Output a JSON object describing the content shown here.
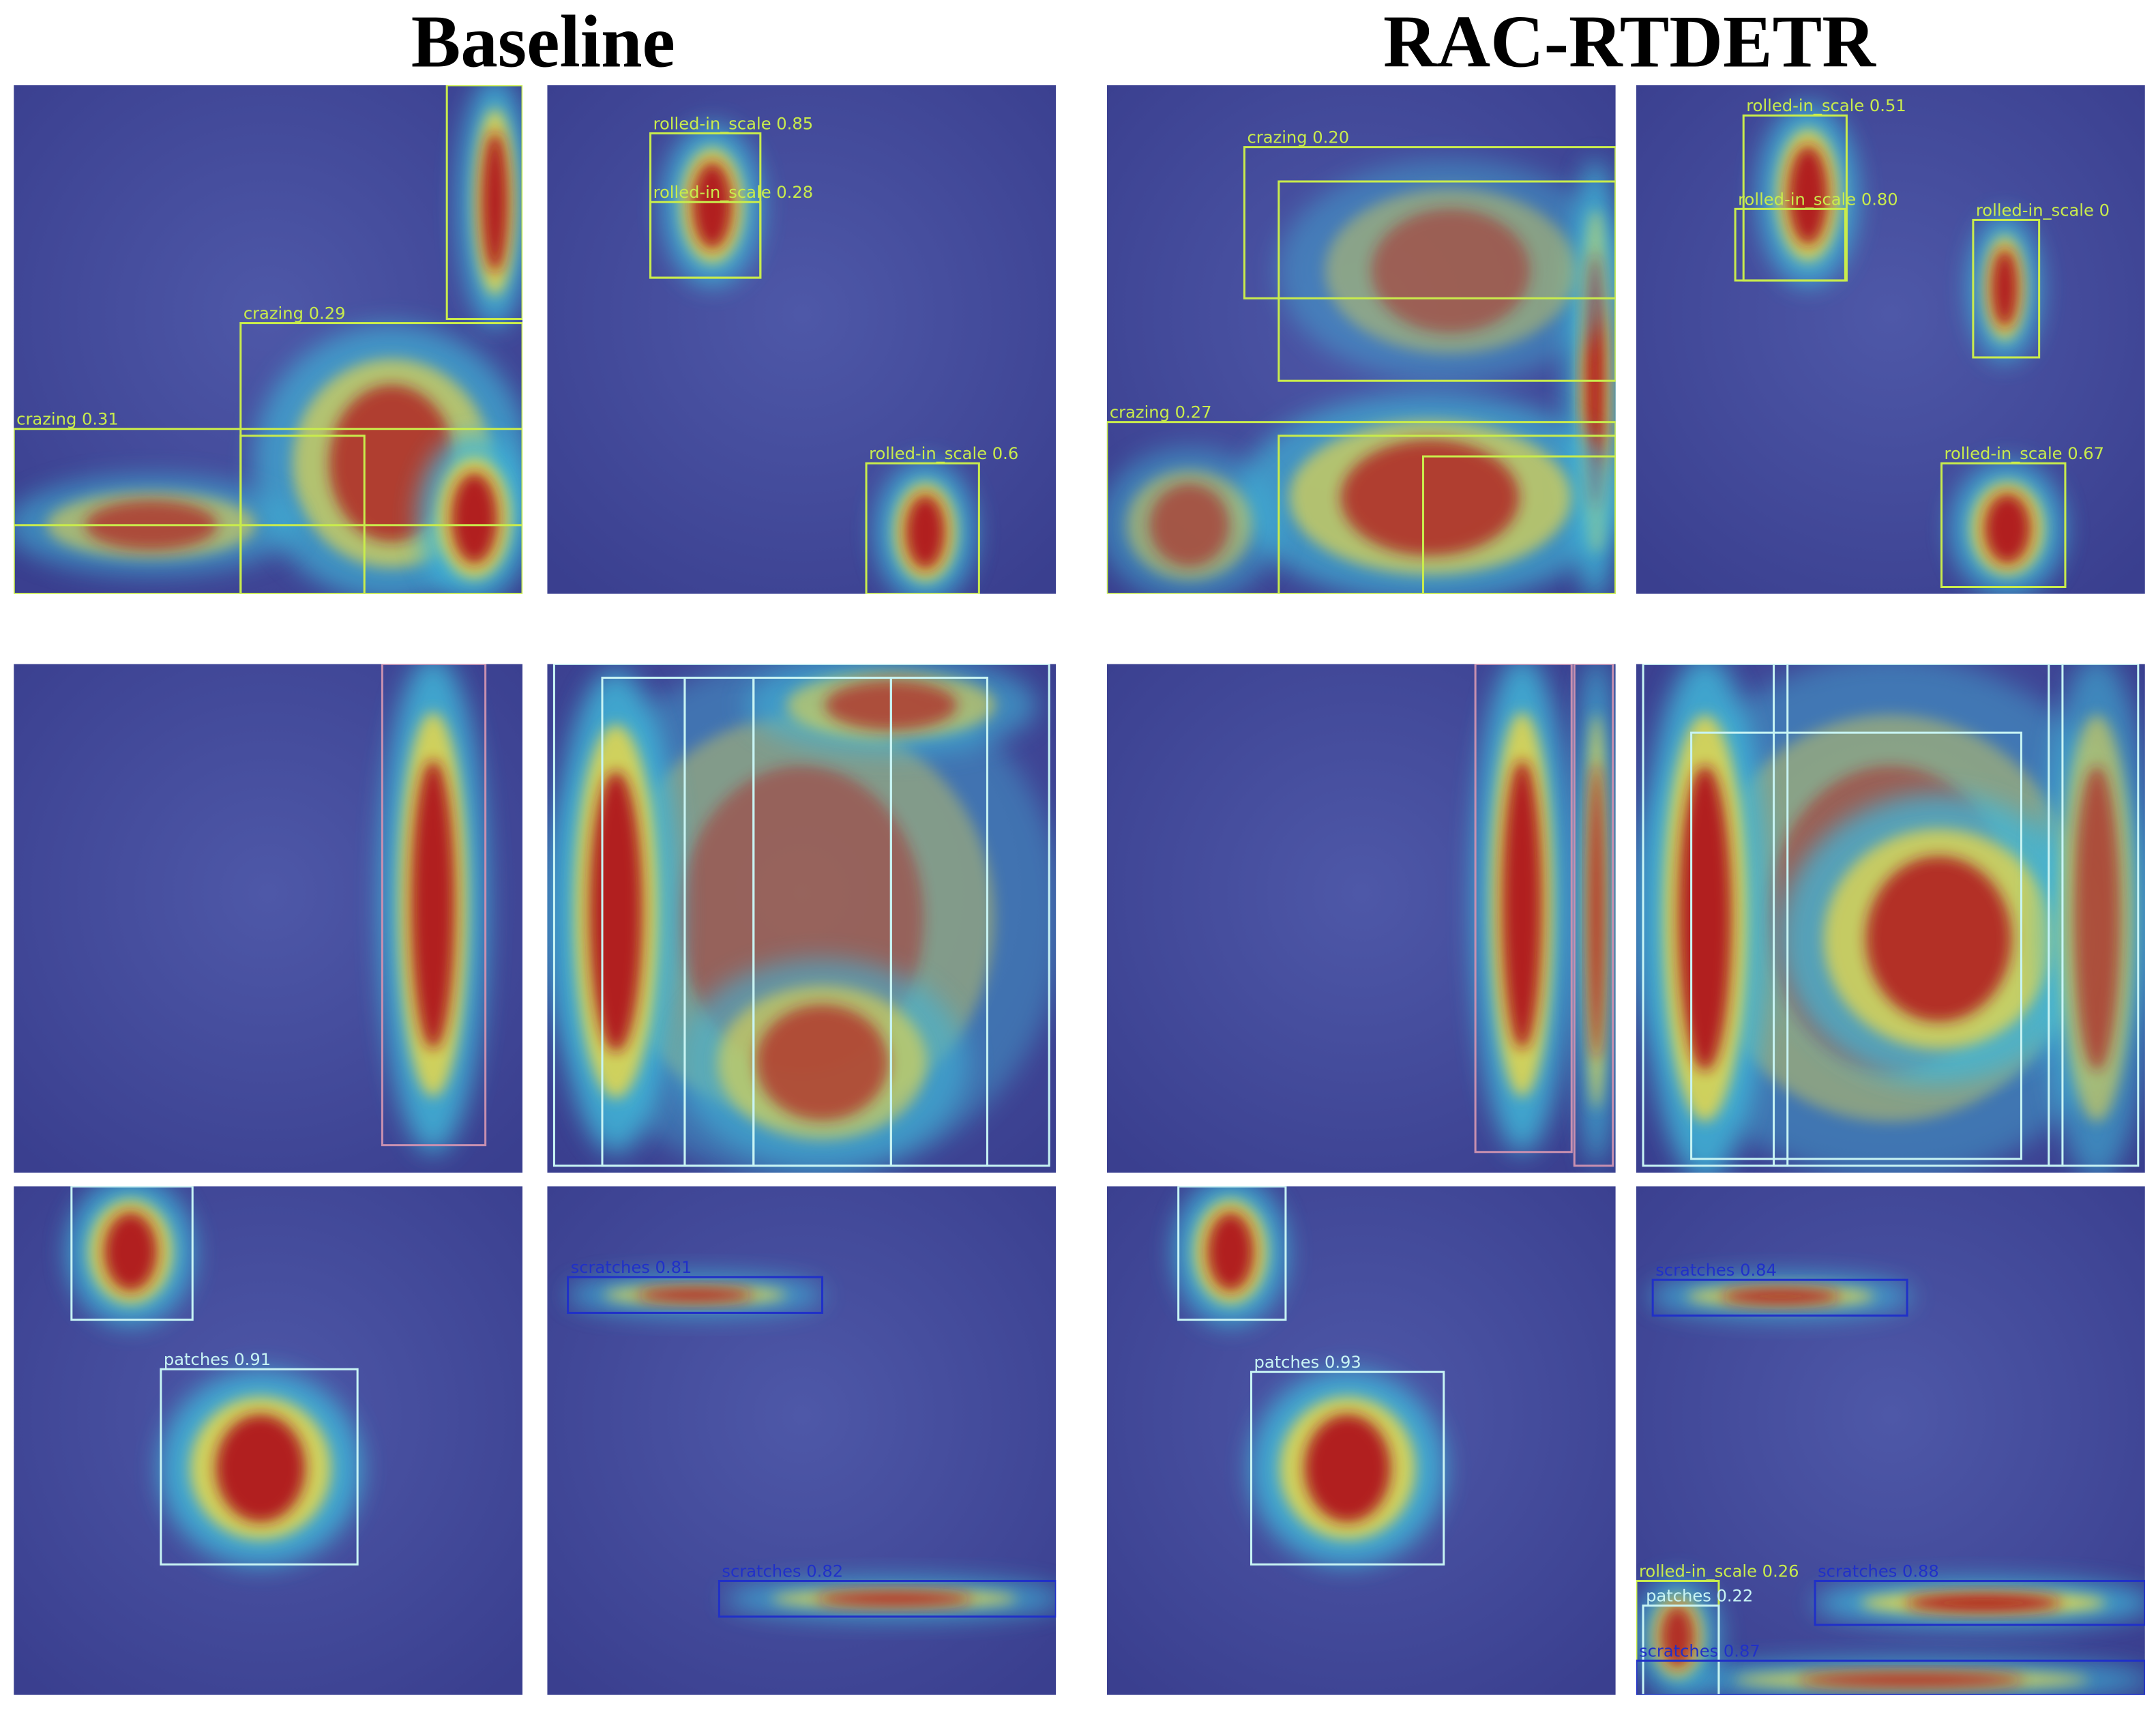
{
  "headers": {
    "baseline": "Baseline",
    "rac": "RAC-RTDETR"
  },
  "panels": [
    {
      "labels": [
        "crazing 0.29",
        "crazing 0.31"
      ]
    },
    {
      "labels": [
        "rolled-in_scale 0.85",
        "rolled-in_scale 0.28",
        "rolled-in_scale 0.6"
      ]
    },
    {
      "labels": [
        "crazing 0.20",
        "crazing 0.27"
      ]
    },
    {
      "labels": [
        "rolled-in_scale 0.51",
        "rolled-in_scale 0.80",
        "rolled-in_scale 0",
        "rolled-in_scale 0.67"
      ]
    },
    {
      "labels": []
    },
    {
      "labels": []
    },
    {
      "labels": []
    },
    {
      "labels": []
    },
    {
      "labels": [
        "patches 0.91"
      ]
    },
    {
      "labels": [
        "scratches 0.81",
        "scratches 0.82"
      ]
    },
    {
      "labels": [
        "patches 0.93"
      ]
    },
    {
      "labels": [
        "scratches 0.84",
        "rolled-in_scale 0.26",
        "patches 0.22",
        "scratches 0.88",
        "scratches 0.87"
      ]
    }
  ]
}
